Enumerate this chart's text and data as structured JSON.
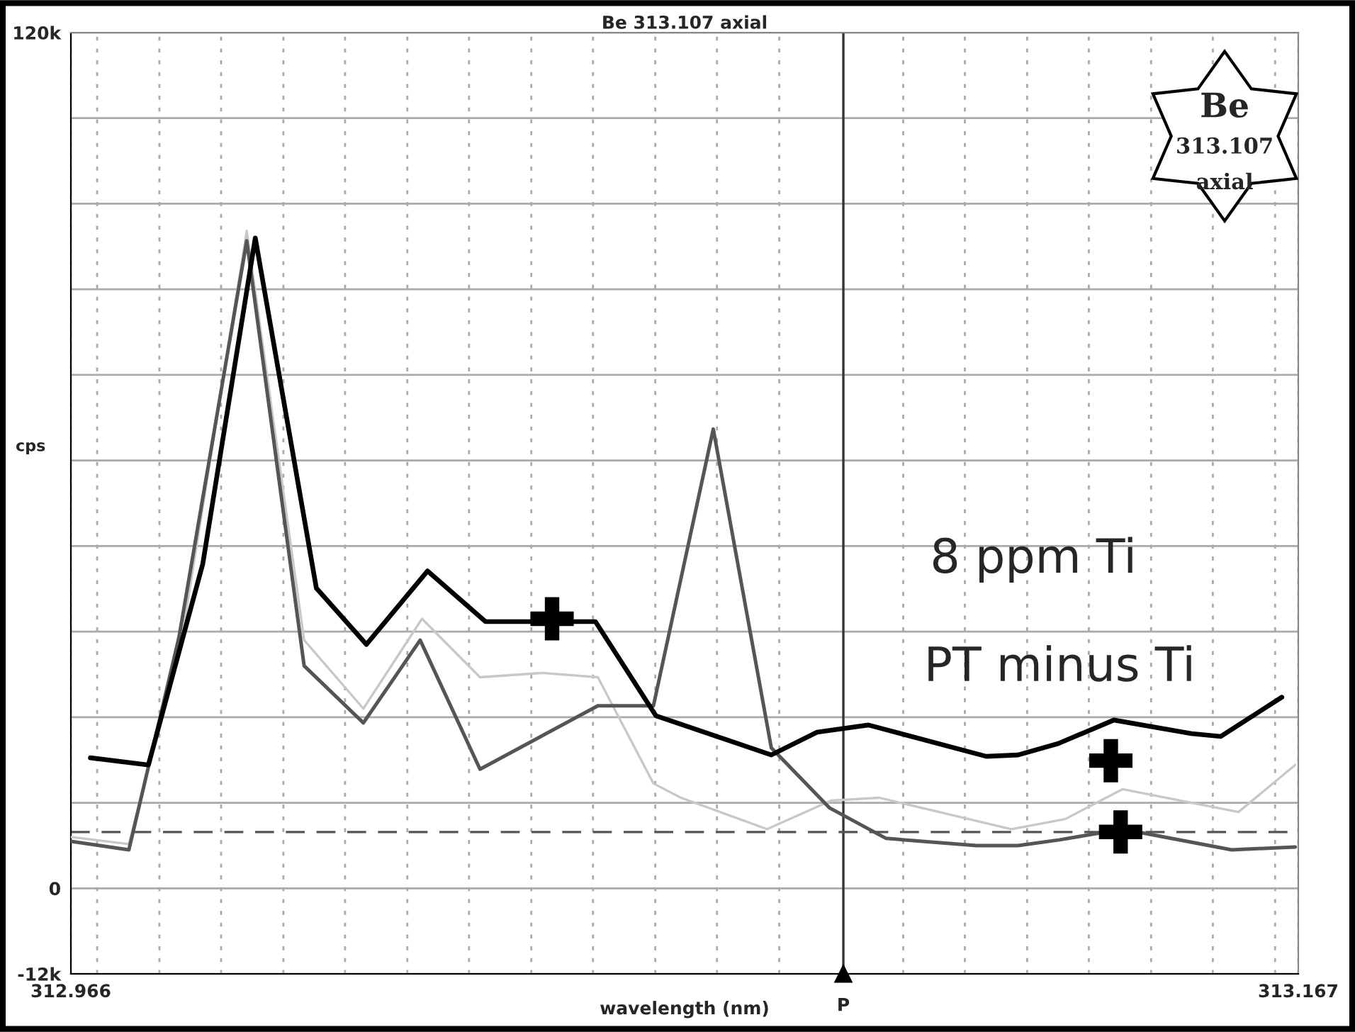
{
  "chart_data": {
    "type": "line",
    "title": "Be 313.107 axial",
    "xlabel": "wavelength (nm)",
    "ylabel": "cps",
    "xlim": [
      312.966,
      313.167
    ],
    "ylim": [
      -12000,
      120000
    ],
    "xticks": [
      312.966,
      {
        "value": 312.9703,
        "label": null
      },
      {
        "value": 312.9805,
        "label": null
      },
      {
        "value": 312.9906,
        "label": null
      },
      {
        "value": 313.0008,
        "label": null
      },
      {
        "value": 313.0109,
        "label": null
      },
      {
        "value": 313.0211,
        "label": null
      },
      {
        "value": 313.0312,
        "label": null
      },
      {
        "value": 313.0414,
        "label": null
      },
      {
        "value": 313.0515,
        "label": null
      },
      {
        "value": 313.0617,
        "label": null
      },
      {
        "value": 313.0718,
        "label": null
      },
      {
        "value": 313.082,
        "label": null
      },
      {
        "value": 313.1023,
        "label": null
      },
      {
        "value": 313.1124,
        "label": null
      },
      {
        "value": 313.1226,
        "label": null
      },
      {
        "value": 313.1327,
        "label": null
      },
      {
        "value": 313.1429,
        "label": null
      },
      {
        "value": 313.153,
        "label": null
      },
      {
        "value": 313.1632,
        "label": null
      },
      313.167
    ],
    "yticks": [
      {
        "value": -12000,
        "label": "-12k"
      },
      0,
      {
        "value": 12000,
        "label": null
      },
      {
        "value": 24000,
        "label": null
      },
      {
        "value": 36000,
        "label": null
      },
      {
        "value": 48000,
        "label": null
      },
      {
        "value": 60000,
        "label": null
      },
      {
        "value": 72000,
        "label": null
      },
      {
        "value": 84000,
        "label": null
      },
      {
        "value": 96000,
        "label": null
      },
      {
        "value": 108000,
        "label": null
      },
      {
        "value": 120000,
        "label": "120k"
      }
    ],
    "grid": true,
    "legend": false,
    "marker": "none",
    "line_style": "solid",
    "series": [
      {
        "color": "#c8c8c8",
        "x": [
          312.966,
          312.9755,
          312.9842,
          312.9948,
          313.0042,
          313.0139,
          313.0235,
          313.033,
          313.0432,
          313.0523,
          313.0614,
          313.0659,
          313.08,
          313.0905,
          313.0984,
          313.12,
          313.1288,
          313.1382,
          313.1572,
          313.1665
        ],
        "values": [
          7200,
          6200,
          35200,
          92200,
          34800,
          25200,
          37800,
          29600,
          30200,
          29600,
          14700,
          12700,
          8300,
          12300,
          12700,
          8300,
          9700,
          13900,
          10700,
          17300
        ]
      },
      {
        "color": "#555555",
        "x": [
          312.966,
          312.9755,
          312.9837,
          312.9948,
          313.0042,
          313.0139,
          313.0232,
          313.033,
          313.0523,
          313.0614,
          313.0712,
          313.0807,
          313.0902,
          313.0995,
          313.1143,
          313.1211,
          313.1279,
          313.1382,
          313.1561,
          313.1665
        ],
        "values": [
          6600,
          5400,
          35200,
          90800,
          31200,
          23200,
          34800,
          16700,
          25600,
          25600,
          64400,
          19700,
          11300,
          7000,
          6000,
          6000,
          6800,
          8300,
          5400,
          5800
        ]
      },
      {
        "color": "#000000",
        "x": [
          312.9692,
          312.9787,
          312.9876,
          312.9962,
          313.0062,
          313.0144,
          313.0244,
          313.0339,
          313.0519,
          313.0618,
          313.0807,
          313.0882,
          313.0966,
          313.1159,
          313.1211,
          313.1277,
          313.1368,
          313.1495,
          313.1543,
          313.1643
        ],
        "values": [
          18300,
          17300,
          45500,
          91200,
          42100,
          34200,
          44500,
          37400,
          37400,
          24200,
          18700,
          21900,
          22900,
          18500,
          18700,
          20300,
          23600,
          21700,
          21300,
          26800
        ]
      },
      {
        "type": "scatter",
        "marker": "cross",
        "color": "#000000",
        "x": [
          313.0448,
          313.1363,
          313.1379
        ],
        "values": [
          37800,
          17900,
          7900
        ]
      }
    ],
    "ref_lines": [
      {
        "axis": "x",
        "value": 313.0925,
        "label": "P",
        "color": "#333333",
        "line_style": "solid"
      },
      {
        "axis": "y",
        "value": 7900,
        "label": null,
        "color": "#555555",
        "line_style": "dashed"
      }
    ],
    "annotations": [
      "8 ppm Ti",
      "PT minus Ti",
      "Be",
      "313.107",
      "axial"
    ]
  }
}
